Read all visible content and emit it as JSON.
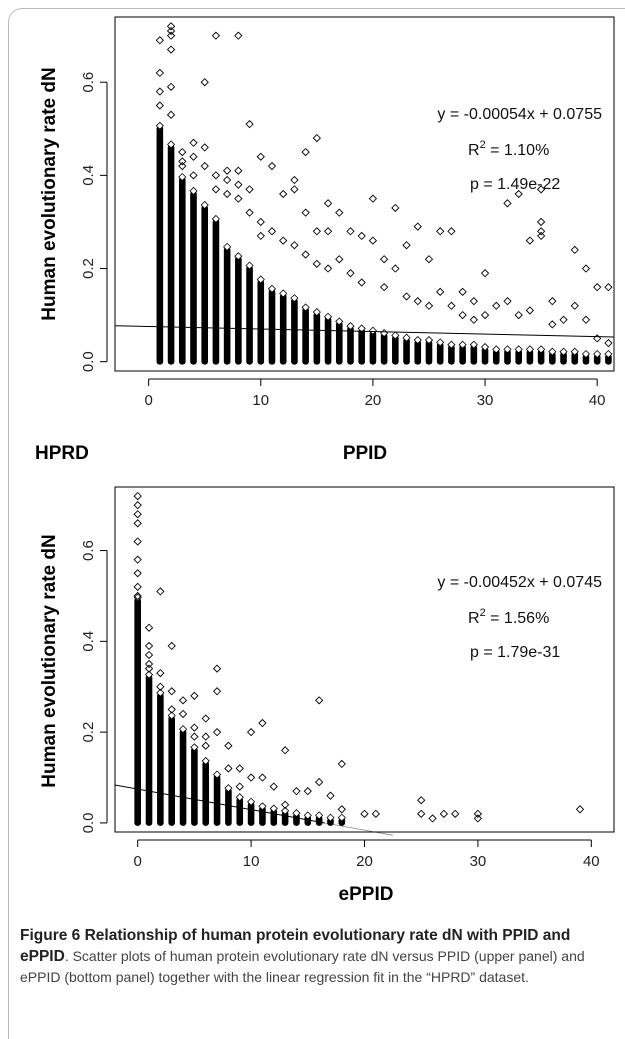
{
  "caption": {
    "title_bold_1": "Figure 6 Relationship of human protein evolutionary rate dN with PPID and ePPID",
    "title_after_bold": ".",
    "body": " Scatter plots of human protein evolutionary rate dN versus PPID (upper panel) and ePPID (bottom panel) together with the linear regression fit in the “HPRD” dataset."
  },
  "chart_data": [
    {
      "type": "scatter",
      "panel": "upper",
      "corner_label": "HPRD",
      "xlabel": "PPID",
      "ylabel": "Human evolutionary rate dN",
      "xlim": [
        -3,
        41.5
      ],
      "ylim": [
        -0.02,
        0.74
      ],
      "xticks": [
        0,
        10,
        20,
        30,
        40
      ],
      "yticks": [
        0.0,
        0.2,
        0.4,
        0.6
      ],
      "ytick_labels": [
        "0.0",
        "0.2",
        "0.4",
        "0.6"
      ],
      "regression": {
        "slope": -0.00054,
        "intercept": 0.0755,
        "x_range": [
          -3,
          41.5
        ]
      },
      "annotation": {
        "equation": "y = -0.00054x + 0.0755",
        "r2_label": "R",
        "r2_value": " = 1.10%",
        "p": "p = 1.49e-22"
      },
      "dense_columns": [
        {
          "x": 1,
          "top": 0.5
        },
        {
          "x": 2,
          "top": 0.46
        },
        {
          "x": 3,
          "top": 0.39
        },
        {
          "x": 4,
          "top": 0.36
        },
        {
          "x": 5,
          "top": 0.33
        },
        {
          "x": 6,
          "top": 0.3
        },
        {
          "x": 7,
          "top": 0.24
        },
        {
          "x": 8,
          "top": 0.22
        },
        {
          "x": 9,
          "top": 0.2
        },
        {
          "x": 10,
          "top": 0.17
        },
        {
          "x": 11,
          "top": 0.15
        },
        {
          "x": 12,
          "top": 0.14
        },
        {
          "x": 13,
          "top": 0.13
        },
        {
          "x": 14,
          "top": 0.11
        },
        {
          "x": 15,
          "top": 0.1
        },
        {
          "x": 16,
          "top": 0.09
        },
        {
          "x": 17,
          "top": 0.08
        },
        {
          "x": 18,
          "top": 0.07
        },
        {
          "x": 19,
          "top": 0.065
        },
        {
          "x": 20,
          "top": 0.06
        },
        {
          "x": 21,
          "top": 0.055
        },
        {
          "x": 22,
          "top": 0.05
        },
        {
          "x": 23,
          "top": 0.045
        },
        {
          "x": 24,
          "top": 0.04
        },
        {
          "x": 25,
          "top": 0.04
        },
        {
          "x": 26,
          "top": 0.035
        },
        {
          "x": 27,
          "top": 0.03
        },
        {
          "x": 28,
          "top": 0.03
        },
        {
          "x": 29,
          "top": 0.03
        },
        {
          "x": 30,
          "top": 0.025
        },
        {
          "x": 31,
          "top": 0.02
        },
        {
          "x": 32,
          "top": 0.02
        },
        {
          "x": 33,
          "top": 0.02
        },
        {
          "x": 34,
          "top": 0.02
        },
        {
          "x": 35,
          "top": 0.02
        },
        {
          "x": 36,
          "top": 0.015
        },
        {
          "x": 37,
          "top": 0.015
        },
        {
          "x": 38,
          "top": 0.015
        },
        {
          "x": 39,
          "top": 0.01
        },
        {
          "x": 40,
          "top": 0.01
        },
        {
          "x": 41,
          "top": 0.01
        }
      ],
      "outliers": [
        [
          1,
          0.69
        ],
        [
          1,
          0.62
        ],
        [
          1,
          0.58
        ],
        [
          1,
          0.55
        ],
        [
          2,
          0.72
        ],
        [
          2,
          0.71
        ],
        [
          2,
          0.7
        ],
        [
          2,
          0.67
        ],
        [
          2,
          0.59
        ],
        [
          2,
          0.53
        ],
        [
          3,
          0.45
        ],
        [
          3,
          0.43
        ],
        [
          3,
          0.42
        ],
        [
          4,
          0.47
        ],
        [
          4,
          0.44
        ],
        [
          4,
          0.4
        ],
        [
          5,
          0.6
        ],
        [
          5,
          0.46
        ],
        [
          5,
          0.42
        ],
        [
          6,
          0.7
        ],
        [
          6,
          0.4
        ],
        [
          6,
          0.37
        ],
        [
          7,
          0.41
        ],
        [
          7,
          0.39
        ],
        [
          7,
          0.36
        ],
        [
          8,
          0.7
        ],
        [
          8,
          0.41
        ],
        [
          8,
          0.38
        ],
        [
          8,
          0.35
        ],
        [
          9,
          0.51
        ],
        [
          9,
          0.37
        ],
        [
          9,
          0.32
        ],
        [
          10,
          0.44
        ],
        [
          10,
          0.3
        ],
        [
          10,
          0.27
        ],
        [
          11,
          0.42
        ],
        [
          11,
          0.28
        ],
        [
          12,
          0.36
        ],
        [
          12,
          0.26
        ],
        [
          13,
          0.39
        ],
        [
          13,
          0.37
        ],
        [
          13,
          0.25
        ],
        [
          14,
          0.45
        ],
        [
          14,
          0.32
        ],
        [
          14,
          0.23
        ],
        [
          15,
          0.48
        ],
        [
          15,
          0.28
        ],
        [
          15,
          0.21
        ],
        [
          16,
          0.34
        ],
        [
          16,
          0.28
        ],
        [
          16,
          0.2
        ],
        [
          17,
          0.32
        ],
        [
          17,
          0.22
        ],
        [
          18,
          0.28
        ],
        [
          18,
          0.19
        ],
        [
          19,
          0.27
        ],
        [
          19,
          0.17
        ],
        [
          20,
          0.35
        ],
        [
          20,
          0.26
        ],
        [
          21,
          0.22
        ],
        [
          21,
          0.16
        ],
        [
          22,
          0.33
        ],
        [
          22,
          0.2
        ],
        [
          23,
          0.25
        ],
        [
          23,
          0.14
        ],
        [
          24,
          0.29
        ],
        [
          24,
          0.13
        ],
        [
          25,
          0.22
        ],
        [
          25,
          0.12
        ],
        [
          26,
          0.28
        ],
        [
          26,
          0.15
        ],
        [
          27,
          0.28
        ],
        [
          27,
          0.12
        ],
        [
          28,
          0.15
        ],
        [
          28,
          0.1
        ],
        [
          29,
          0.13
        ],
        [
          29,
          0.09
        ],
        [
          30,
          0.19
        ],
        [
          30,
          0.1
        ],
        [
          31,
          0.12
        ],
        [
          32,
          0.34
        ],
        [
          32,
          0.13
        ],
        [
          33,
          0.36
        ],
        [
          33,
          0.1
        ],
        [
          34,
          0.26
        ],
        [
          34,
          0.11
        ],
        [
          35,
          0.37
        ],
        [
          35,
          0.3
        ],
        [
          35,
          0.28
        ],
        [
          35,
          0.27
        ],
        [
          36,
          0.13
        ],
        [
          36,
          0.08
        ],
        [
          37,
          0.09
        ],
        [
          38,
          0.24
        ],
        [
          38,
          0.12
        ],
        [
          39,
          0.2
        ],
        [
          39,
          0.09
        ],
        [
          40,
          0.16
        ],
        [
          40,
          0.05
        ],
        [
          41,
          0.16
        ],
        [
          41,
          0.04
        ]
      ]
    },
    {
      "type": "scatter",
      "panel": "bottom",
      "xlabel": "ePPID",
      "ylabel": "Human evolutionary rate dN",
      "xlim": [
        -2,
        42
      ],
      "ylim": [
        -0.02,
        0.74
      ],
      "xticks": [
        0,
        10,
        20,
        30,
        40
      ],
      "yticks": [
        0.0,
        0.2,
        0.4,
        0.6
      ],
      "ytick_labels": [
        "0.0",
        "0.2",
        "0.4",
        "0.6"
      ],
      "regression": {
        "slope": -0.00452,
        "intercept": 0.0745,
        "x_range": [
          -2,
          22.5
        ],
        "x_fade": [
          16.5,
          22.5
        ]
      },
      "annotation": {
        "equation": "y = -0.00452x + 0.0745",
        "r2_label": "R",
        "r2_value": " = 1.56%",
        "p": "p = 1.79e-31"
      },
      "dense_columns": [
        {
          "x": 0,
          "top": 0.49
        },
        {
          "x": 1,
          "top": 0.32
        },
        {
          "x": 2,
          "top": 0.28
        },
        {
          "x": 3,
          "top": 0.23
        },
        {
          "x": 4,
          "top": 0.2
        },
        {
          "x": 5,
          "top": 0.16
        },
        {
          "x": 6,
          "top": 0.13
        },
        {
          "x": 7,
          "top": 0.1
        },
        {
          "x": 8,
          "top": 0.07
        },
        {
          "x": 9,
          "top": 0.05
        },
        {
          "x": 10,
          "top": 0.04
        },
        {
          "x": 11,
          "top": 0.03
        },
        {
          "x": 12,
          "top": 0.025
        },
        {
          "x": 13,
          "top": 0.02
        },
        {
          "x": 14,
          "top": 0.015
        },
        {
          "x": 15,
          "top": 0.01
        },
        {
          "x": 16,
          "top": 0.01
        },
        {
          "x": 17,
          "top": 0.005
        },
        {
          "x": 18,
          "top": 0.005
        }
      ],
      "outliers": [
        [
          0,
          0.72
        ],
        [
          0,
          0.7
        ],
        [
          0,
          0.68
        ],
        [
          0,
          0.66
        ],
        [
          0,
          0.62
        ],
        [
          0,
          0.58
        ],
        [
          0,
          0.55
        ],
        [
          0,
          0.52
        ],
        [
          0,
          0.5
        ],
        [
          1,
          0.43
        ],
        [
          1,
          0.39
        ],
        [
          1,
          0.37
        ],
        [
          1,
          0.35
        ],
        [
          1,
          0.34
        ],
        [
          2,
          0.51
        ],
        [
          2,
          0.33
        ],
        [
          2,
          0.3
        ],
        [
          3,
          0.39
        ],
        [
          3,
          0.29
        ],
        [
          3,
          0.25
        ],
        [
          4,
          0.27
        ],
        [
          4,
          0.24
        ],
        [
          5,
          0.28
        ],
        [
          5,
          0.21
        ],
        [
          5,
          0.19
        ],
        [
          6,
          0.23
        ],
        [
          6,
          0.19
        ],
        [
          6,
          0.17
        ],
        [
          7,
          0.34
        ],
        [
          7,
          0.29
        ],
        [
          7,
          0.2
        ],
        [
          8,
          0.17
        ],
        [
          8,
          0.12
        ],
        [
          9,
          0.12
        ],
        [
          9,
          0.08
        ],
        [
          10,
          0.2
        ],
        [
          10,
          0.1
        ],
        [
          11,
          0.22
        ],
        [
          11,
          0.1
        ],
        [
          12,
          0.08
        ],
        [
          13,
          0.16
        ],
        [
          13,
          0.04
        ],
        [
          14,
          0.07
        ],
        [
          15,
          0.07
        ],
        [
          16,
          0.27
        ],
        [
          16,
          0.09
        ],
        [
          17,
          0.06
        ],
        [
          18,
          0.13
        ],
        [
          18,
          0.03
        ],
        [
          20,
          0.02
        ],
        [
          21,
          0.02
        ],
        [
          25,
          0.05
        ],
        [
          25,
          0.02
        ],
        [
          26,
          0.01
        ],
        [
          27,
          0.02
        ],
        [
          28,
          0.02
        ],
        [
          30,
          0.02
        ],
        [
          30,
          0.01
        ],
        [
          39,
          0.03
        ]
      ]
    }
  ]
}
